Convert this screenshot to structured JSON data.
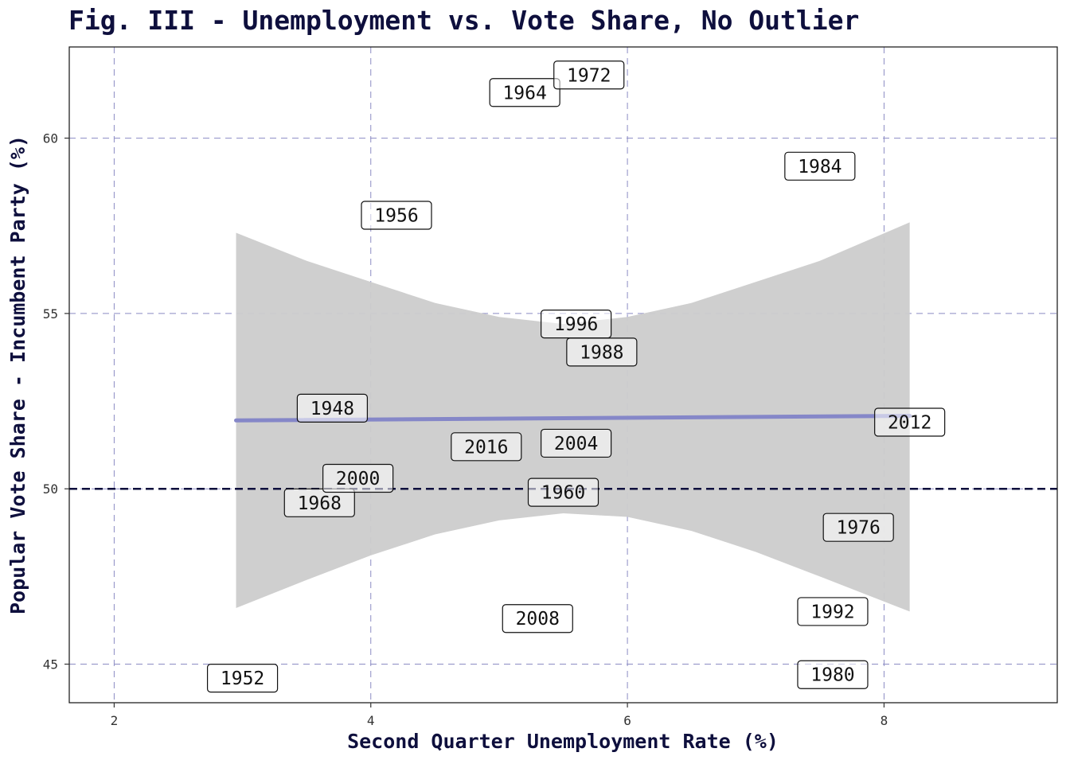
{
  "chart_data": {
    "type": "scatter",
    "title": "Fig. III - Unemployment vs. Vote Share, No Outlier",
    "xlabel": "Second Quarter Unemployment Rate (%)",
    "ylabel": "Popular Vote Share - Incumbent Party (%)",
    "xlim": [
      1.65,
      9.35
    ],
    "ylim": [
      43.9,
      62.6
    ],
    "x_ticks": [
      2,
      4,
      6,
      8
    ],
    "y_ticks": [
      45,
      50,
      55,
      60
    ],
    "grid": true,
    "grid_color": "#8b8bc4",
    "points": [
      {
        "label": "1948",
        "x": 3.7,
        "y": 52.3
      },
      {
        "label": "1952",
        "x": 3.0,
        "y": 44.6
      },
      {
        "label": "1956",
        "x": 4.2,
        "y": 57.8
      },
      {
        "label": "1960",
        "x": 5.5,
        "y": 49.9
      },
      {
        "label": "1964",
        "x": 5.2,
        "y": 61.3
      },
      {
        "label": "1968",
        "x": 3.6,
        "y": 49.6
      },
      {
        "label": "1972",
        "x": 5.7,
        "y": 61.8
      },
      {
        "label": "1976",
        "x": 7.8,
        "y": 48.9
      },
      {
        "label": "1980",
        "x": 7.6,
        "y": 44.7
      },
      {
        "label": "1984",
        "x": 7.5,
        "y": 59.2
      },
      {
        "label": "1988",
        "x": 5.8,
        "y": 53.9
      },
      {
        "label": "1992",
        "x": 7.6,
        "y": 46.5
      },
      {
        "label": "1996",
        "x": 5.6,
        "y": 54.7
      },
      {
        "label": "2000",
        "x": 3.9,
        "y": 50.3
      },
      {
        "label": "2004",
        "x": 5.6,
        "y": 51.3
      },
      {
        "label": "2008",
        "x": 5.3,
        "y": 46.3
      },
      {
        "label": "2012",
        "x": 8.2,
        "y": 51.9
      },
      {
        "label": "2016",
        "x": 4.9,
        "y": 51.2
      }
    ],
    "reference_line": {
      "y": 50,
      "style": "dashed",
      "color": "#0e0f3d"
    },
    "regression_line": {
      "x": [
        2.95,
        8.2
      ],
      "y": [
        51.95,
        52.08
      ],
      "color": "#8587c8"
    },
    "confidence_band": {
      "color": "#cccccc",
      "x": [
        2.95,
        3.5,
        4.0,
        4.5,
        5.0,
        5.5,
        6.0,
        6.5,
        7.0,
        7.5,
        8.2
      ],
      "upper": [
        57.3,
        56.5,
        55.9,
        55.3,
        54.9,
        54.7,
        54.9,
        55.3,
        55.9,
        56.5,
        57.6
      ],
      "lower": [
        46.6,
        47.4,
        48.1,
        48.7,
        49.1,
        49.3,
        49.2,
        48.8,
        48.2,
        47.5,
        46.5
      ]
    }
  }
}
